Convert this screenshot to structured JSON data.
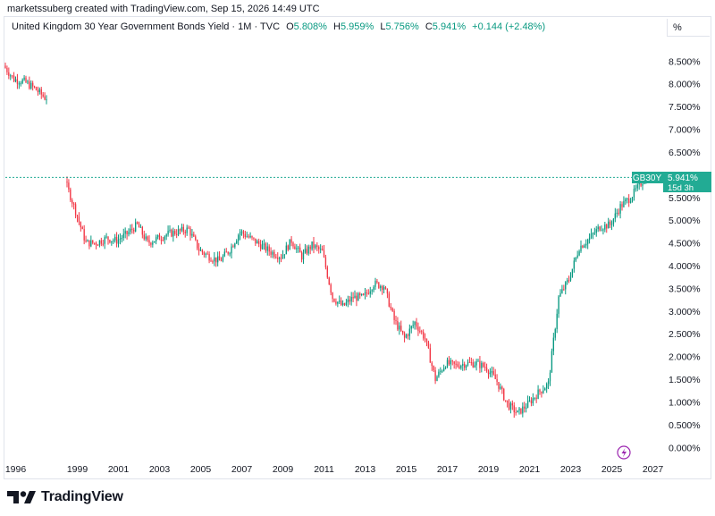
{
  "header": {
    "credit": "marketssuberg created with TradingView.com, Sep 15, 2026 14:49 UTC"
  },
  "legend": {
    "title": "United Kingdom 30 Year Government Bonds Yield · 1M · TVC",
    "o_label": "O",
    "o_value": "5.808%",
    "h_label": "H",
    "h_value": "5.959%",
    "l_label": "L",
    "l_value": "5.756%",
    "c_label": "C",
    "c_value": "5.941%",
    "change": "+0.144 (+2.48%)"
  },
  "unit_label": "%",
  "price_tag": {
    "symbol": "GB30Y",
    "value": "5.941%",
    "countdown": "15d 3h"
  },
  "footer": {
    "brand": "TradingView"
  },
  "colors": {
    "up": "#089981",
    "down": "#f23645",
    "accent": "#22ab94",
    "text": "#131722",
    "grid": "#e0e3eb"
  },
  "icons": {
    "logo": "tradingview-logo-icon",
    "flash": "lightning-bolt-icon"
  },
  "chart_data": {
    "type": "candlestick",
    "interval": "1M",
    "y_unit": "%",
    "y_ticks": [
      "8.500%",
      "8.000%",
      "7.500%",
      "7.000%",
      "6.500%",
      "6.000%",
      "5.500%",
      "5.000%",
      "4.500%",
      "4.000%",
      "3.500%",
      "3.000%",
      "2.500%",
      "2.000%",
      "1.500%",
      "1.000%",
      "0.500%",
      "0.000%"
    ],
    "y_tick_values": [
      8.5,
      8.0,
      7.5,
      7.0,
      6.5,
      6.0,
      5.5,
      5.0,
      4.5,
      4.0,
      3.5,
      3.0,
      2.5,
      2.0,
      1.5,
      1.0,
      0.5,
      0.0
    ],
    "x_ticks": [
      "1996",
      "1999",
      "2001",
      "2003",
      "2005",
      "2007",
      "2009",
      "2011",
      "2013",
      "2015",
      "2017",
      "2019",
      "2021",
      "2023",
      "2025",
      "2027"
    ],
    "x_tick_values": [
      1996,
      1999,
      2001,
      2003,
      2005,
      2007,
      2009,
      2011,
      2013,
      2015,
      2017,
      2019,
      2021,
      2023,
      2025,
      2027
    ],
    "xlim": [
      1995.5,
      2027.5
    ],
    "ylim": [
      -0.25,
      8.9
    ],
    "last_close": 5.941,
    "gap": [
      1997.55,
      1998.5
    ],
    "series": [
      {
        "x": [
          1995.5,
          1996.0,
          1996.5,
          1997.0,
          1997.5
        ],
        "y": [
          8.4,
          8.1,
          8.05,
          7.9,
          7.7
        ]
      },
      {
        "x": [
          1998.5,
          1999.0,
          1999.5,
          2000.0,
          2000.5,
          2001.0,
          2001.5,
          2002.0,
          2002.5,
          2003.0,
          2003.5,
          2004.0,
          2004.5,
          2005.0,
          2005.5,
          2006.0,
          2006.5,
          2007.0,
          2007.5,
          2008.0,
          2008.5,
          2009.0,
          2009.5,
          2010.0,
          2010.5,
          2011.0,
          2011.5,
          2012.0,
          2012.5,
          2013.0,
          2013.5,
          2014.0,
          2014.5,
          2015.0,
          2015.5,
          2016.0,
          2016.5,
          2017.0,
          2017.5,
          2018.0,
          2018.5,
          2019.0,
          2019.5,
          2020.0,
          2020.5,
          2021.0,
          2021.5,
          2022.0,
          2022.5,
          2023.0,
          2023.5,
          2024.0,
          2024.5,
          2025.0,
          2025.5,
          2026.0,
          2026.7
        ],
        "y": [
          5.85,
          5.2,
          4.5,
          4.5,
          4.6,
          4.55,
          4.7,
          4.9,
          4.5,
          4.6,
          4.7,
          4.75,
          4.8,
          4.35,
          4.2,
          4.1,
          4.35,
          4.75,
          4.6,
          4.45,
          4.3,
          4.2,
          4.55,
          4.2,
          4.45,
          4.3,
          3.3,
          3.1,
          3.3,
          3.3,
          3.6,
          3.55,
          2.8,
          2.4,
          2.75,
          2.4,
          1.5,
          1.85,
          1.8,
          1.85,
          1.85,
          1.75,
          1.45,
          0.95,
          0.75,
          0.95,
          1.2,
          1.4,
          3.3,
          3.7,
          4.4,
          4.6,
          4.85,
          4.9,
          5.3,
          5.5,
          5.94
        ]
      }
    ]
  }
}
